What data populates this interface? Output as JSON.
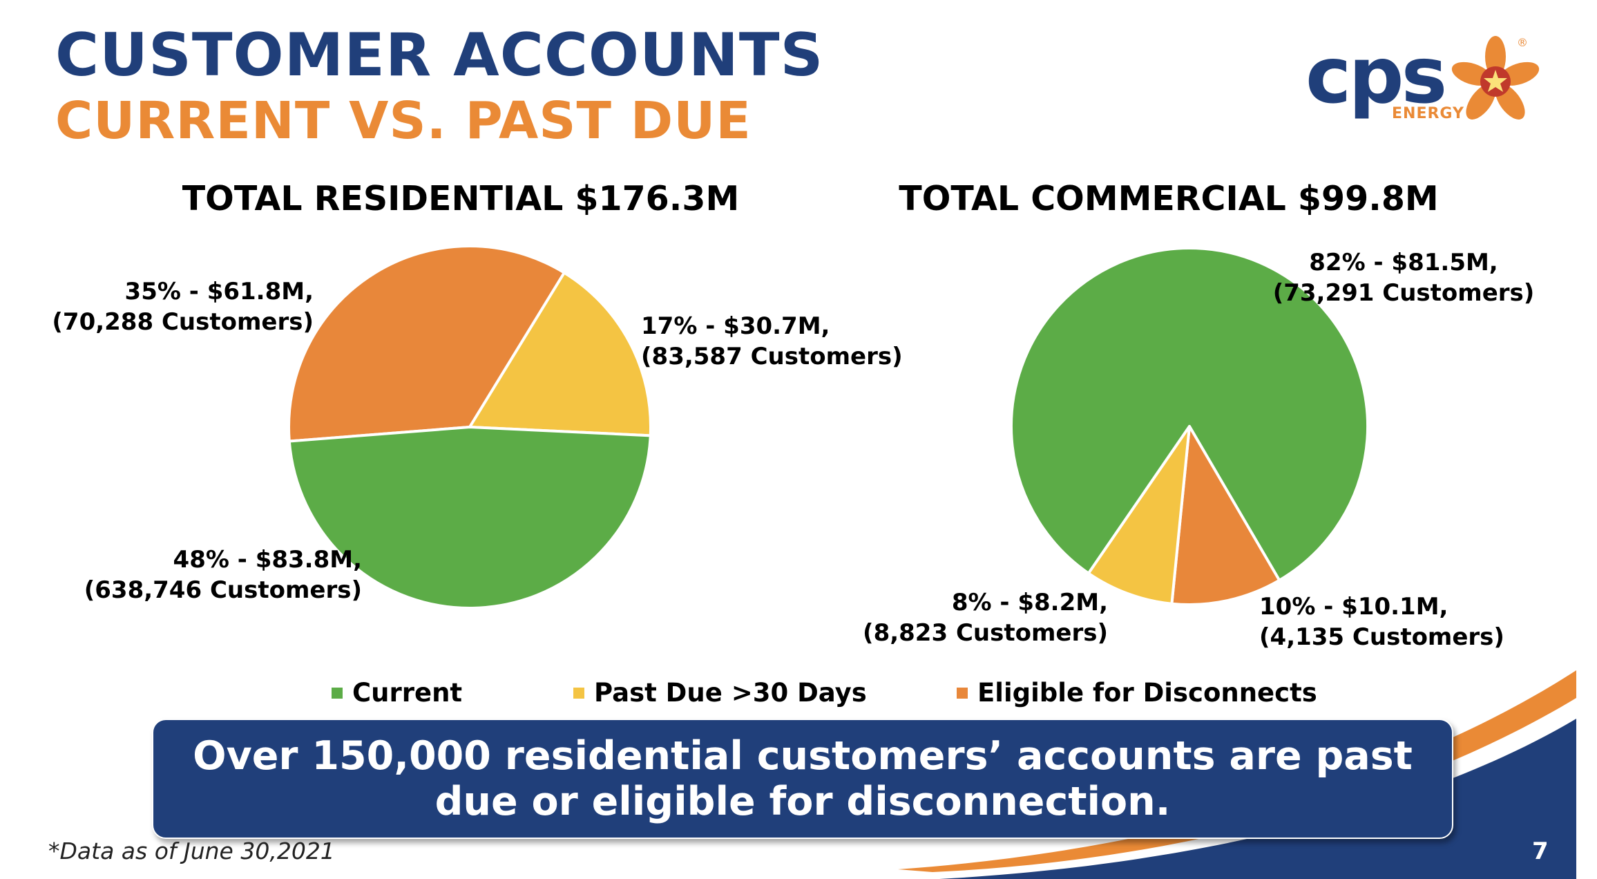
{
  "header": {
    "title": "CUSTOMER ACCOUNTS",
    "subtitle": "CURRENT VS. PAST DUE"
  },
  "logo": {
    "text": "cps",
    "subtext": "ENERGY",
    "registered": "®"
  },
  "colors": {
    "navy": "#203f7a",
    "orange": "#ea8a36",
    "current": "#5cac47",
    "past_due": "#f4c443",
    "eligible": "#e8873a"
  },
  "chart_data": [
    {
      "type": "pie",
      "title": "TOTAL RESIDENTIAL $176.3M",
      "slices": [
        {
          "name": "Eligible for Disconnects",
          "percent": 35,
          "color": "#e8873a",
          "label_line1": "35% - $61.8M,",
          "label_line2": "(70,288 Customers)"
        },
        {
          "name": "Past Due >30 Days",
          "percent": 17,
          "color": "#f4c443",
          "label_line1": "17% - $30.7M,",
          "label_line2": "(83,587 Customers)"
        },
        {
          "name": "Current",
          "percent": 48,
          "color": "#5cac47",
          "label_line1": "48% - $83.8M,",
          "label_line2": "(638,746 Customers)"
        }
      ]
    },
    {
      "type": "pie",
      "title": "TOTAL COMMERCIAL $99.8M",
      "slices": [
        {
          "name": "Current",
          "percent": 82,
          "color": "#5cac47",
          "label_line1": "82% - $81.5M,",
          "label_line2": "(73,291 Customers)"
        },
        {
          "name": "Eligible for Disconnects",
          "percent": 10,
          "color": "#e8873a",
          "label_line1": "10% - $10.1M,",
          "label_line2": "(4,135 Customers)"
        },
        {
          "name": "Past Due >30 Days",
          "percent": 8,
          "color": "#f4c443",
          "label_line1": "8% - $8.2M,",
          "label_line2": "(8,823 Customers)"
        }
      ]
    }
  ],
  "legend": [
    {
      "label": "Current",
      "color": "#5cac47"
    },
    {
      "label": "Past Due >30 Days",
      "color": "#f4c443"
    },
    {
      "label": "Eligible for Disconnects",
      "color": "#e8873a"
    }
  ],
  "banner": {
    "line1": "Over 150,000 residential customers’ accounts are past",
    "line2": "due or eligible for disconnection."
  },
  "footnote": "*Data as of June 30,2021",
  "page_number": "7"
}
